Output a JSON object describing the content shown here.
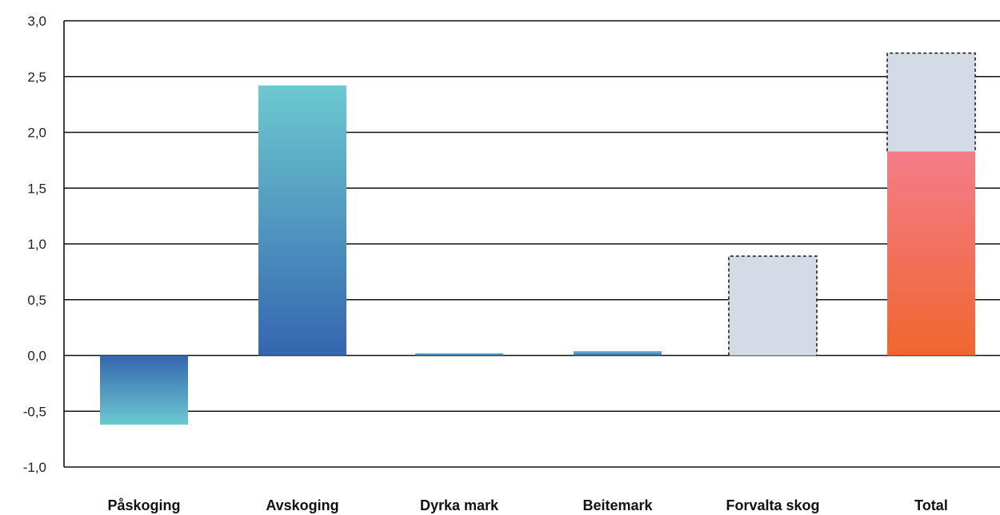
{
  "chart_data": {
    "type": "bar",
    "categories": [
      "Påskoging",
      "Avskoging",
      "Dyrka mark",
      "Beitemark",
      "Forvalta skog",
      "Total"
    ],
    "series": [
      {
        "values": [
          -0.62,
          2.42,
          0.02,
          0.04,
          0.0,
          1.83
        ]
      },
      {
        "values": [
          0.0,
          0.0,
          0.0,
          0.0,
          0.89,
          0.88
        ],
        "style": "dashed"
      }
    ],
    "ylim": [
      -1.0,
      3.0
    ],
    "yticks": [
      "3,0",
      "2,5",
      "2,0",
      "1,5",
      "1,0",
      "0,5",
      "0,0",
      "-0,5",
      "-1,0"
    ],
    "grid": true,
    "colors": {
      "blue_gradient": [
        "#6cc9d0",
        "#3566b0"
      ],
      "red_gradient": [
        "#f47c8a",
        "#f0662e"
      ],
      "uncertain_fill": "#d3dce6",
      "grid": "#111111"
    }
  }
}
